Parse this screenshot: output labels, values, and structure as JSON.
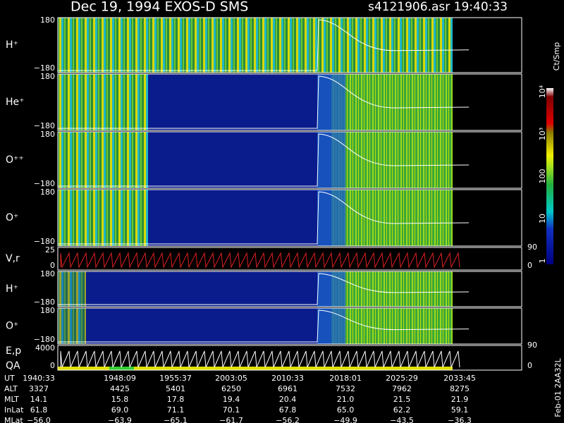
{
  "header": {
    "title": "Dec 19, 1994   EXOS-D SMS",
    "file": "s4121906.asr  19:40:33"
  },
  "panels": [
    {
      "label": "H⁺",
      "left_ticks": [
        "180",
        "−180"
      ]
    },
    {
      "label": "He⁺",
      "left_ticks": [
        "180",
        "−180"
      ]
    },
    {
      "label": "O⁺⁺",
      "left_ticks": [
        "180",
        "−180"
      ]
    },
    {
      "label": "O⁺",
      "left_ticks": [
        "180",
        "−180"
      ],
      "right_ticks": [
        "90"
      ]
    },
    {
      "label": "V,r",
      "left_ticks": [
        "25",
        "0"
      ],
      "right_ticks": [
        "0"
      ]
    },
    {
      "label": "H⁺",
      "left_ticks": [
        "180",
        "−180"
      ]
    },
    {
      "label": "O⁺",
      "left_ticks": [
        "180",
        "−180"
      ],
      "right_ticks": [
        "90"
      ]
    },
    {
      "label": "E,p",
      "label2": "QA",
      "left_ticks": [
        "4000",
        "0"
      ],
      "right_ticks": [
        "0"
      ]
    }
  ],
  "colorbar": {
    "unit": "Ct/Smp",
    "labels": [
      "10⁴",
      "10³",
      "100",
      "10",
      "1"
    ]
  },
  "footer": "Feb-01 2AA32L",
  "table": {
    "rows": [
      {
        "label": "UT",
        "values": [
          "1940:33",
          "1948:09",
          "1955:37",
          "2003:05",
          "2010:33",
          "2018:01",
          "2025:29",
          "2033:45"
        ]
      },
      {
        "label": "ALT",
        "values": [
          "3327",
          "4425",
          "5401",
          "6250",
          "6961",
          "7532",
          "7962",
          "8275"
        ]
      },
      {
        "label": "MLT",
        "values": [
          "14.1",
          "15.8",
          "17.8",
          "19.4",
          "20.4",
          "21.0",
          "21.5",
          "21.9"
        ]
      },
      {
        "label": "InLat",
        "values": [
          "61.8",
          "69.0",
          "71.1",
          "70.1",
          "67.8",
          "65.0",
          "62.2",
          "59.1"
        ]
      },
      {
        "label": "MLat",
        "values": [
          "−56.0",
          "−63.9",
          "−65.1",
          "−61.7",
          "−56.2",
          "−49.9",
          "−43.5",
          "−36.3"
        ]
      }
    ]
  }
}
